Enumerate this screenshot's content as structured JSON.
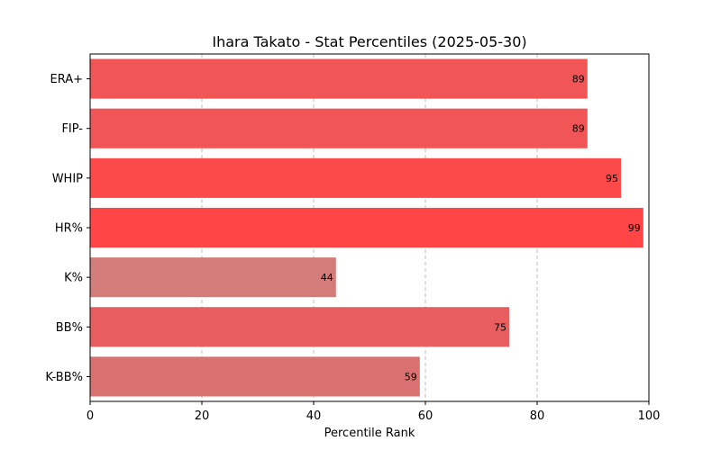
{
  "chart_data": {
    "type": "bar",
    "orientation": "horizontal",
    "title": "Ihara Takato - Stat Percentiles (2025-05-30)",
    "xlabel": "Percentile Rank",
    "ylabel": "",
    "xlim": [
      0,
      100
    ],
    "xticks": [
      0,
      20,
      40,
      60,
      80,
      100
    ],
    "grid": "x, dashed",
    "categories": [
      "ERA+",
      "FIP-",
      "WHIP",
      "HR%",
      "K%",
      "BB%",
      "K-BB%"
    ],
    "values": [
      89,
      89,
      95,
      99,
      44,
      75,
      59
    ],
    "colors": [
      "#f25556",
      "#f25556",
      "#fc4a4b",
      "#ff4546",
      "#d37c79",
      "#e85d5e",
      "#d87170"
    ]
  }
}
